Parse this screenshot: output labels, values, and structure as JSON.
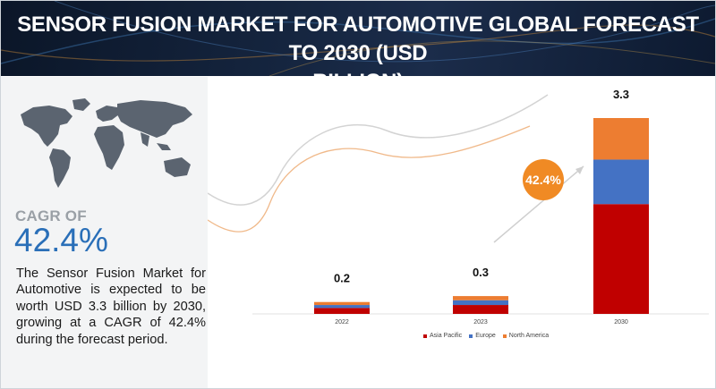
{
  "header": {
    "title_line1": "SENSOR FUSION MARKET FOR AUTOMOTIVE GLOBAL FORECAST TO 2030 (USD",
    "title_line2": "BILLION)"
  },
  "left_panel": {
    "map_icon": "world-map",
    "cagr_label": "CAGR OF",
    "cagr_value": "42.4%",
    "description": "The Sensor Fusion Market for Automotive is expected to be worth USD 3.3 billion by 2030, growing at a CAGR of 42.4% during the forecast period."
  },
  "callout": {
    "value": "42.4%"
  },
  "colors": {
    "asia_pacific": "#c00000",
    "europe": "#4472c4",
    "north_america": "#ed7d31",
    "accent": "#f08a24",
    "cagr_text": "#2a6fb8"
  },
  "chart_data": {
    "type": "bar",
    "stacked": true,
    "title": "",
    "xlabel": "",
    "ylabel": "",
    "categories": [
      "2022",
      "2023",
      "2030"
    ],
    "totals_labels": [
      "0.2",
      "0.3",
      "3.3"
    ],
    "series": [
      {
        "name": "Asia Pacific",
        "values": [
          0.1,
          0.15,
          1.85
        ]
      },
      {
        "name": "Europe",
        "values": [
          0.05,
          0.08,
          0.75
        ]
      },
      {
        "name": "North America",
        "values": [
          0.05,
          0.07,
          0.7
        ]
      }
    ],
    "ylim": [
      0,
      3.3
    ],
    "grid": false,
    "legend_position": "bottom"
  }
}
